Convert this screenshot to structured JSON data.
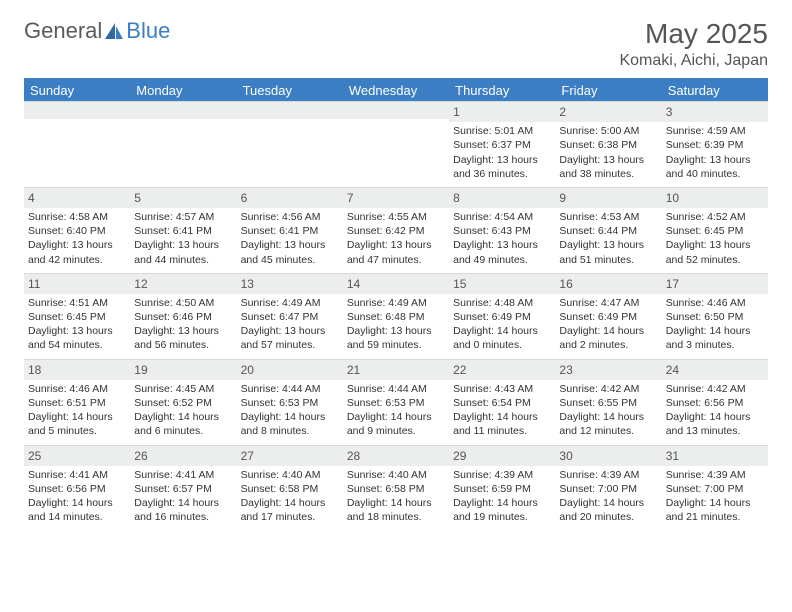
{
  "brand": {
    "part1": "General",
    "part2": "Blue"
  },
  "title": "May 2025",
  "location": "Komaki, Aichi, Japan",
  "colors": {
    "header_bg": "#3b7ec4",
    "header_text": "#ffffff",
    "datenum_bg": "#eceded",
    "page_bg": "#ffffff",
    "text": "#333333",
    "title_text": "#555555"
  },
  "weekdays": [
    "Sunday",
    "Monday",
    "Tuesday",
    "Wednesday",
    "Thursday",
    "Friday",
    "Saturday"
  ],
  "weeks": [
    [
      null,
      null,
      null,
      null,
      {
        "n": "1",
        "sr": "Sunrise: 5:01 AM",
        "ss": "Sunset: 6:37 PM",
        "dl": "Daylight: 13 hours and 36 minutes."
      },
      {
        "n": "2",
        "sr": "Sunrise: 5:00 AM",
        "ss": "Sunset: 6:38 PM",
        "dl": "Daylight: 13 hours and 38 minutes."
      },
      {
        "n": "3",
        "sr": "Sunrise: 4:59 AM",
        "ss": "Sunset: 6:39 PM",
        "dl": "Daylight: 13 hours and 40 minutes."
      }
    ],
    [
      {
        "n": "4",
        "sr": "Sunrise: 4:58 AM",
        "ss": "Sunset: 6:40 PM",
        "dl": "Daylight: 13 hours and 42 minutes."
      },
      {
        "n": "5",
        "sr": "Sunrise: 4:57 AM",
        "ss": "Sunset: 6:41 PM",
        "dl": "Daylight: 13 hours and 44 minutes."
      },
      {
        "n": "6",
        "sr": "Sunrise: 4:56 AM",
        "ss": "Sunset: 6:41 PM",
        "dl": "Daylight: 13 hours and 45 minutes."
      },
      {
        "n": "7",
        "sr": "Sunrise: 4:55 AM",
        "ss": "Sunset: 6:42 PM",
        "dl": "Daylight: 13 hours and 47 minutes."
      },
      {
        "n": "8",
        "sr": "Sunrise: 4:54 AM",
        "ss": "Sunset: 6:43 PM",
        "dl": "Daylight: 13 hours and 49 minutes."
      },
      {
        "n": "9",
        "sr": "Sunrise: 4:53 AM",
        "ss": "Sunset: 6:44 PM",
        "dl": "Daylight: 13 hours and 51 minutes."
      },
      {
        "n": "10",
        "sr": "Sunrise: 4:52 AM",
        "ss": "Sunset: 6:45 PM",
        "dl": "Daylight: 13 hours and 52 minutes."
      }
    ],
    [
      {
        "n": "11",
        "sr": "Sunrise: 4:51 AM",
        "ss": "Sunset: 6:45 PM",
        "dl": "Daylight: 13 hours and 54 minutes."
      },
      {
        "n": "12",
        "sr": "Sunrise: 4:50 AM",
        "ss": "Sunset: 6:46 PM",
        "dl": "Daylight: 13 hours and 56 minutes."
      },
      {
        "n": "13",
        "sr": "Sunrise: 4:49 AM",
        "ss": "Sunset: 6:47 PM",
        "dl": "Daylight: 13 hours and 57 minutes."
      },
      {
        "n": "14",
        "sr": "Sunrise: 4:49 AM",
        "ss": "Sunset: 6:48 PM",
        "dl": "Daylight: 13 hours and 59 minutes."
      },
      {
        "n": "15",
        "sr": "Sunrise: 4:48 AM",
        "ss": "Sunset: 6:49 PM",
        "dl": "Daylight: 14 hours and 0 minutes."
      },
      {
        "n": "16",
        "sr": "Sunrise: 4:47 AM",
        "ss": "Sunset: 6:49 PM",
        "dl": "Daylight: 14 hours and 2 minutes."
      },
      {
        "n": "17",
        "sr": "Sunrise: 4:46 AM",
        "ss": "Sunset: 6:50 PM",
        "dl": "Daylight: 14 hours and 3 minutes."
      }
    ],
    [
      {
        "n": "18",
        "sr": "Sunrise: 4:46 AM",
        "ss": "Sunset: 6:51 PM",
        "dl": "Daylight: 14 hours and 5 minutes."
      },
      {
        "n": "19",
        "sr": "Sunrise: 4:45 AM",
        "ss": "Sunset: 6:52 PM",
        "dl": "Daylight: 14 hours and 6 minutes."
      },
      {
        "n": "20",
        "sr": "Sunrise: 4:44 AM",
        "ss": "Sunset: 6:53 PM",
        "dl": "Daylight: 14 hours and 8 minutes."
      },
      {
        "n": "21",
        "sr": "Sunrise: 4:44 AM",
        "ss": "Sunset: 6:53 PM",
        "dl": "Daylight: 14 hours and 9 minutes."
      },
      {
        "n": "22",
        "sr": "Sunrise: 4:43 AM",
        "ss": "Sunset: 6:54 PM",
        "dl": "Daylight: 14 hours and 11 minutes."
      },
      {
        "n": "23",
        "sr": "Sunrise: 4:42 AM",
        "ss": "Sunset: 6:55 PM",
        "dl": "Daylight: 14 hours and 12 minutes."
      },
      {
        "n": "24",
        "sr": "Sunrise: 4:42 AM",
        "ss": "Sunset: 6:56 PM",
        "dl": "Daylight: 14 hours and 13 minutes."
      }
    ],
    [
      {
        "n": "25",
        "sr": "Sunrise: 4:41 AM",
        "ss": "Sunset: 6:56 PM",
        "dl": "Daylight: 14 hours and 14 minutes."
      },
      {
        "n": "26",
        "sr": "Sunrise: 4:41 AM",
        "ss": "Sunset: 6:57 PM",
        "dl": "Daylight: 14 hours and 16 minutes."
      },
      {
        "n": "27",
        "sr": "Sunrise: 4:40 AM",
        "ss": "Sunset: 6:58 PM",
        "dl": "Daylight: 14 hours and 17 minutes."
      },
      {
        "n": "28",
        "sr": "Sunrise: 4:40 AM",
        "ss": "Sunset: 6:58 PM",
        "dl": "Daylight: 14 hours and 18 minutes."
      },
      {
        "n": "29",
        "sr": "Sunrise: 4:39 AM",
        "ss": "Sunset: 6:59 PM",
        "dl": "Daylight: 14 hours and 19 minutes."
      },
      {
        "n": "30",
        "sr": "Sunrise: 4:39 AM",
        "ss": "Sunset: 7:00 PM",
        "dl": "Daylight: 14 hours and 20 minutes."
      },
      {
        "n": "31",
        "sr": "Sunrise: 4:39 AM",
        "ss": "Sunset: 7:00 PM",
        "dl": "Daylight: 14 hours and 21 minutes."
      }
    ]
  ]
}
